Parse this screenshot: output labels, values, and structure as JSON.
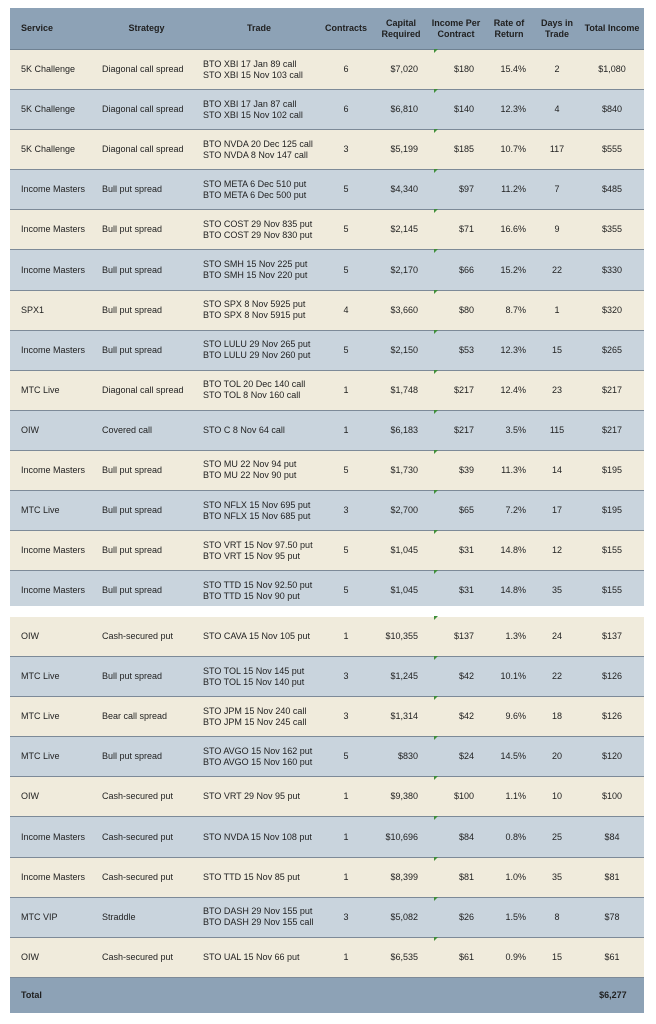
{
  "headers": {
    "service": "Service",
    "strategy": "Strategy",
    "trade": "Trade",
    "contracts": "Contracts",
    "capital": "Capital Required",
    "income_per_contract": "Income Per Contract",
    "rate_of_return": "Rate of Return",
    "days": "Days in Trade",
    "total_income": "Total Income"
  },
  "rows_top": [
    {
      "service": "5K Challenge",
      "strategy": "Diagonal call spread",
      "trade": [
        "BTO XBI 17 Jan 89 call",
        "STO XBI 15 Nov 103 call"
      ],
      "contracts": "6",
      "capital": "$7,020",
      "income": "$180",
      "ror": "15.4%",
      "days": "2",
      "total": "$1,080"
    },
    {
      "service": "5K Challenge",
      "strategy": "Diagonal call spread",
      "trade": [
        "BTO XBI 17 Jan 87 call",
        "STO XBI 15 Nov 102 call"
      ],
      "contracts": "6",
      "capital": "$6,810",
      "income": "$140",
      "ror": "12.3%",
      "days": "4",
      "total": "$840"
    },
    {
      "service": "5K Challenge",
      "strategy": "Diagonal call spread",
      "trade": [
        "BTO NVDA 20 Dec 125 call",
        "STO NVDA 8 Nov 147 call"
      ],
      "contracts": "3",
      "capital": "$5,199",
      "income": "$185",
      "ror": "10.7%",
      "days": "117",
      "total": "$555"
    },
    {
      "service": "Income Masters",
      "strategy": "Bull put spread",
      "trade": [
        "STO META 6 Dec 510 put",
        "BTO META 6 Dec 500 put"
      ],
      "contracts": "5",
      "capital": "$4,340",
      "income": "$97",
      "ror": "11.2%",
      "days": "7",
      "total": "$485"
    },
    {
      "service": "Income Masters",
      "strategy": "Bull put spread",
      "trade": [
        "STO COST 29 Nov 835 put",
        "BTO COST 29 Nov 830 put"
      ],
      "contracts": "5",
      "capital": "$2,145",
      "income": "$71",
      "ror": "16.6%",
      "days": "9",
      "total": "$355"
    },
    {
      "service": "Income Masters",
      "strategy": "Bull put spread",
      "trade": [
        "STO SMH 15 Nov 225 put",
        "BTO SMH 15 Nov 220 put"
      ],
      "contracts": "5",
      "capital": "$2,170",
      "income": "$66",
      "ror": "15.2%",
      "days": "22",
      "total": "$330"
    },
    {
      "service": "SPX1",
      "strategy": "Bull put spread",
      "trade": [
        "STO SPX 8 Nov 5925 put",
        "BTO SPX 8 Nov 5915 put"
      ],
      "contracts": "4",
      "capital": "$3,660",
      "income": "$80",
      "ror": "8.7%",
      "days": "1",
      "total": "$320"
    },
    {
      "service": "Income Masters",
      "strategy": "Bull put spread",
      "trade": [
        "STO LULU 29 Nov 265 put",
        "BTO LULU 29 Nov 260 put"
      ],
      "contracts": "5",
      "capital": "$2,150",
      "income": "$53",
      "ror": "12.3%",
      "days": "15",
      "total": "$265"
    },
    {
      "service": "MTC Live",
      "strategy": "Diagonal call spread",
      "trade": [
        "BTO TOL 20 Dec 140 call",
        "STO TOL 8 Nov 160 call"
      ],
      "contracts": "1",
      "capital": "$1,748",
      "income": "$217",
      "ror": "12.4%",
      "days": "23",
      "total": "$217"
    },
    {
      "service": "OIW",
      "strategy": "Covered call",
      "trade": [
        "STO C 8 Nov 64 call"
      ],
      "contracts": "1",
      "capital": "$6,183",
      "income": "$217",
      "ror": "3.5%",
      "days": "115",
      "total": "$217"
    },
    {
      "service": "Income Masters",
      "strategy": "Bull put spread",
      "trade": [
        "STO MU 22 Nov 94 put",
        "BTO MU 22 Nov 90 put"
      ],
      "contracts": "5",
      "capital": "$1,730",
      "income": "$39",
      "ror": "11.3%",
      "days": "14",
      "total": "$195"
    },
    {
      "service": "MTC Live",
      "strategy": "Bull put spread",
      "trade": [
        "STO NFLX 15 Nov 695 put",
        "BTO NFLX 15 Nov 685 put"
      ],
      "contracts": "3",
      "capital": "$2,700",
      "income": "$65",
      "ror": "7.2%",
      "days": "17",
      "total": "$195"
    },
    {
      "service": "Income Masters",
      "strategy": "Bull put spread",
      "trade": [
        "STO VRT 15 Nov 97.50 put",
        "BTO VRT 15 Nov 95 put"
      ],
      "contracts": "5",
      "capital": "$1,045",
      "income": "$31",
      "ror": "14.8%",
      "days": "12",
      "total": "$155"
    },
    {
      "service": "Income Masters",
      "strategy": "Bull put spread",
      "trade": [
        "STO TTD 15 Nov 92.50 put",
        "BTO TTD 15 Nov 90 put"
      ],
      "contracts": "5",
      "capital": "$1,045",
      "income": "$31",
      "ror": "14.8%",
      "days": "35",
      "total": "$155"
    }
  ],
  "rows_bottom": [
    {
      "service": "OIW",
      "strategy": "Cash-secured put",
      "trade": [
        "STO CAVA 15 Nov 105 put"
      ],
      "contracts": "1",
      "capital": "$10,355",
      "income": "$137",
      "ror": "1.3%",
      "days": "24",
      "total": "$137"
    },
    {
      "service": "MTC Live",
      "strategy": "Bull put spread",
      "trade": [
        "STO TOL 15 Nov 145 put",
        "BTO TOL 15 Nov 140 put"
      ],
      "contracts": "3",
      "capital": "$1,245",
      "income": "$42",
      "ror": "10.1%",
      "days": "22",
      "total": "$126"
    },
    {
      "service": "MTC Live",
      "strategy": "Bear call spread",
      "trade": [
        "STO JPM 15 Nov 240 call",
        "BTO JPM 15 Nov 245 call"
      ],
      "contracts": "3",
      "capital": "$1,314",
      "income": "$42",
      "ror": "9.6%",
      "days": "18",
      "total": "$126"
    },
    {
      "service": "MTC Live",
      "strategy": "Bull put spread",
      "trade": [
        "STO AVGO 15 Nov 162 put",
        "BTO AVGO 15 Nov 160 put"
      ],
      "contracts": "5",
      "capital": "$830",
      "income": "$24",
      "ror": "14.5%",
      "days": "20",
      "total": "$120"
    },
    {
      "service": "OIW",
      "strategy": "Cash-secured put",
      "trade": [
        "STO VRT 29 Nov 95 put"
      ],
      "contracts": "1",
      "capital": "$9,380",
      "income": "$100",
      "ror": "1.1%",
      "days": "10",
      "total": "$100"
    },
    {
      "service": "Income Masters",
      "strategy": "Cash-secured put",
      "trade": [
        "STO NVDA 15 Nov 108 put"
      ],
      "contracts": "1",
      "capital": "$10,696",
      "income": "$84",
      "ror": "0.8%",
      "days": "25",
      "total": "$84"
    },
    {
      "service": "Income Masters",
      "strategy": "Cash-secured put",
      "trade": [
        "STO TTD 15 Nov 85 put"
      ],
      "contracts": "1",
      "capital": "$8,399",
      "income": "$81",
      "ror": "1.0%",
      "days": "35",
      "total": "$81"
    },
    {
      "service": "MTC VIP",
      "strategy": "Straddle",
      "trade": [
        "BTO DASH 29 Nov 155 put",
        "BTO DASH 29 Nov 155 call"
      ],
      "contracts": "3",
      "capital": "$5,082",
      "income": "$26",
      "ror": "1.5%",
      "days": "8",
      "total": "$78"
    },
    {
      "service": "OIW",
      "strategy": "Cash-secured put",
      "trade": [
        "STO UAL 15 Nov 66 put"
      ],
      "contracts": "1",
      "capital": "$6,535",
      "income": "$61",
      "ror": "0.9%",
      "days": "15",
      "total": "$61"
    }
  ],
  "total": {
    "label": "Total",
    "value": "$6,277"
  },
  "colors": {
    "header": "#8da2b6",
    "row_light": "#f0ebdc",
    "row_dark": "#c9d4dd",
    "marker": "#3f8e3a"
  }
}
